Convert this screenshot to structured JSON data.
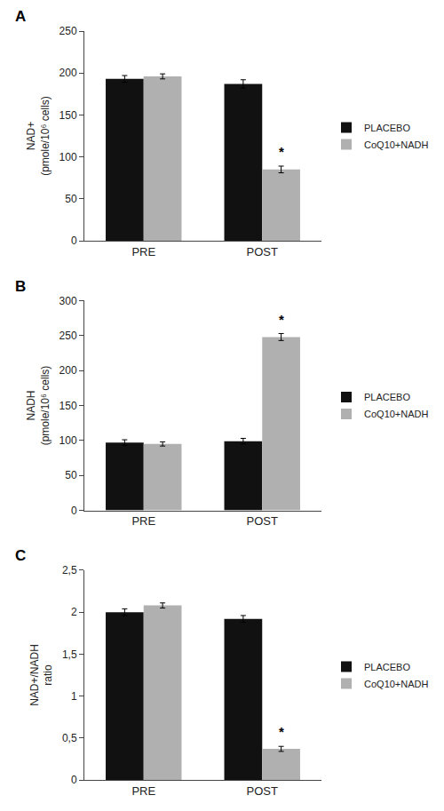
{
  "chart_data": [
    {
      "type": "bar",
      "title": "A",
      "ylabel": "NAD+\n(pmole/10⁶ cells)",
      "categories": [
        "PRE",
        "POST"
      ],
      "series": [
        {
          "name": "PLACEBO",
          "color": "#111111",
          "values": [
            193,
            187
          ],
          "errors": [
            4,
            5
          ]
        },
        {
          "name": "CoQ10+NADH",
          "color": "#b0b0b0",
          "values": [
            196,
            85
          ],
          "errors": [
            3,
            4
          ]
        }
      ],
      "ylim": [
        0,
        250
      ],
      "yticks": [
        0,
        50,
        100,
        150,
        200,
        250
      ],
      "annotations": [
        {
          "text": "*",
          "category": "POST",
          "series": "CoQ10+NADH"
        }
      ],
      "grid": false,
      "legend": "right"
    },
    {
      "type": "bar",
      "title": "B",
      "ylabel": "NADH\n(pmole/10⁶ cells)",
      "categories": [
        "PRE",
        "POST"
      ],
      "series": [
        {
          "name": "PLACEBO",
          "color": "#111111",
          "values": [
            97,
            99
          ],
          "errors": [
            4,
            4
          ]
        },
        {
          "name": "CoQ10+NADH",
          "color": "#b0b0b0",
          "values": [
            95,
            248
          ],
          "errors": [
            3,
            5
          ]
        }
      ],
      "ylim": [
        0,
        300
      ],
      "yticks": [
        0,
        50,
        100,
        150,
        200,
        250,
        300
      ],
      "annotations": [
        {
          "text": "*",
          "category": "POST",
          "series": "CoQ10+NADH"
        }
      ],
      "grid": false,
      "legend": "right"
    },
    {
      "type": "bar",
      "title": "C",
      "ylabel": "NAD+/NADH\nratio",
      "categories": [
        "PRE",
        "POST"
      ],
      "series": [
        {
          "name": "PLACEBO",
          "color": "#111111",
          "values": [
            2.0,
            1.92
          ],
          "errors": [
            0.04,
            0.04
          ]
        },
        {
          "name": "CoQ10+NADH",
          "color": "#b0b0b0",
          "values": [
            2.08,
            0.37
          ],
          "errors": [
            0.03,
            0.03
          ]
        }
      ],
      "ylim": [
        0,
        2.5
      ],
      "yticks": [
        0,
        {
          "value": 0.5,
          "label": "0,5"
        },
        1,
        {
          "value": 1.5,
          "label": "1,5"
        },
        2,
        {
          "value": 2.5,
          "label": "2,5"
        }
      ],
      "annotations": [
        {
          "text": "*",
          "category": "POST",
          "series": "CoQ10+NADH"
        }
      ],
      "grid": false,
      "legend": "right"
    }
  ]
}
